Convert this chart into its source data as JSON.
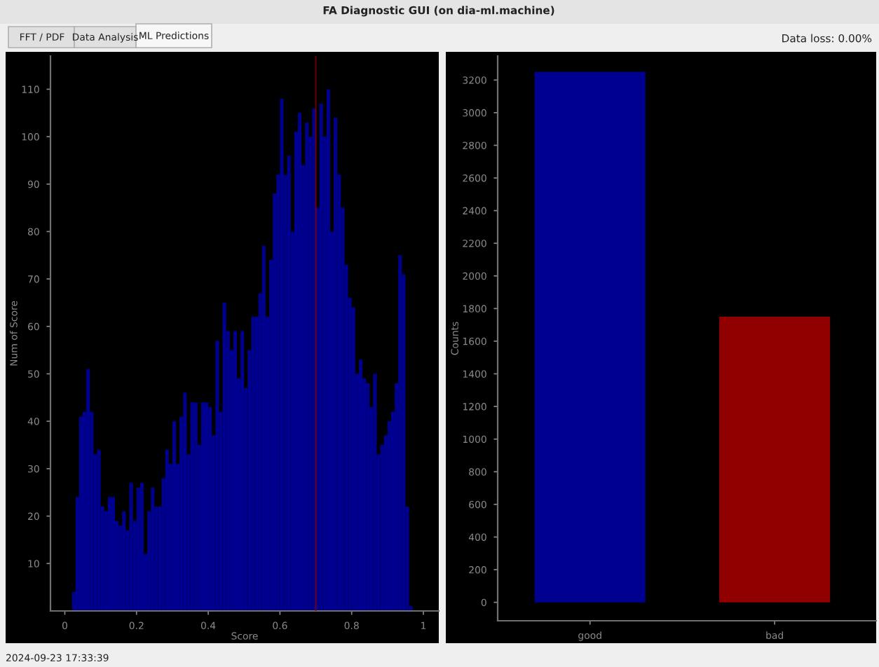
{
  "chart_data": [
    {
      "type": "histogram",
      "xlabel": "Score",
      "ylabel": "Num of Score",
      "color": "#000090",
      "bins": [
        0.02,
        0.03,
        0.04,
        0.05,
        0.06,
        0.07,
        0.08,
        0.09,
        0.1,
        0.11,
        0.12,
        0.13,
        0.14,
        0.15,
        0.16,
        0.17,
        0.18,
        0.19,
        0.2,
        0.21,
        0.22,
        0.23,
        0.24,
        0.25,
        0.26,
        0.27,
        0.28,
        0.29,
        0.3,
        0.31,
        0.32,
        0.33,
        0.34,
        0.35,
        0.36,
        0.37,
        0.38,
        0.39,
        0.4,
        0.41,
        0.42,
        0.43,
        0.44,
        0.45,
        0.46,
        0.47,
        0.48,
        0.49,
        0.5,
        0.51,
        0.52,
        0.53,
        0.54,
        0.55,
        0.56,
        0.57,
        0.58,
        0.59,
        0.6,
        0.61,
        0.62,
        0.63,
        0.64,
        0.65,
        0.66,
        0.67,
        0.68,
        0.69,
        0.7,
        0.71,
        0.72,
        0.73,
        0.74,
        0.75,
        0.76,
        0.77,
        0.78,
        0.79,
        0.8,
        0.81,
        0.82,
        0.83,
        0.84,
        0.85,
        0.86,
        0.87,
        0.88,
        0.89,
        0.9,
        0.91,
        0.92,
        0.93,
        0.94,
        0.95,
        0.96,
        0.97
      ],
      "values": [
        4,
        24,
        41,
        42,
        51,
        42,
        33,
        34,
        22,
        21,
        24,
        24,
        19,
        18,
        21,
        17,
        27,
        19,
        26,
        27,
        12,
        21,
        26,
        22,
        22,
        28,
        34,
        31,
        40,
        31,
        41,
        46,
        33,
        44,
        44,
        35,
        44,
        44,
        43,
        37,
        57,
        42,
        65,
        59,
        55,
        59,
        49,
        59,
        47,
        55,
        62,
        62,
        67,
        77,
        62,
        74,
        88,
        92,
        108,
        92,
        96,
        80,
        101,
        105,
        94,
        103,
        100,
        106,
        85,
        107,
        100,
        110,
        80,
        104,
        92,
        85,
        73,
        66,
        64,
        50,
        53,
        49,
        48,
        43,
        50,
        33,
        35,
        37,
        40,
        42,
        48,
        75,
        71,
        22,
        1
      ],
      "xlim": [
        -0.04,
        1.043
      ],
      "ylim": [
        0,
        117
      ],
      "xticks": [
        0,
        0.2,
        0.4,
        0.6,
        0.8,
        1
      ],
      "yticks": [
        10,
        20,
        30,
        40,
        50,
        60,
        70,
        80,
        90,
        100,
        110
      ],
      "ref_lines": [
        {
          "axis": "x",
          "value": 0.7,
          "color": "#8b0000"
        }
      ],
      "grid": false,
      "annotations": [
        "FA Diagnostic GUI (on dia-ml.machine)",
        "FFT / PDF",
        "Data Analysis",
        "ML Predictions",
        "Data loss: 0.00%",
        "2024-09-23 17:33:39"
      ]
    },
    {
      "type": "bar",
      "ylabel": "Counts",
      "categories": [
        "good",
        "bad"
      ],
      "values": [
        3250,
        1750
      ],
      "colors": [
        "#000090",
        "#900000"
      ],
      "ylim": [
        -113,
        3347
      ],
      "yticks": [
        0,
        200,
        400,
        600,
        800,
        1000,
        1200,
        1400,
        1600,
        1800,
        2000,
        2200,
        2400,
        2600,
        2800,
        3000,
        3200
      ],
      "grid": false
    }
  ]
}
